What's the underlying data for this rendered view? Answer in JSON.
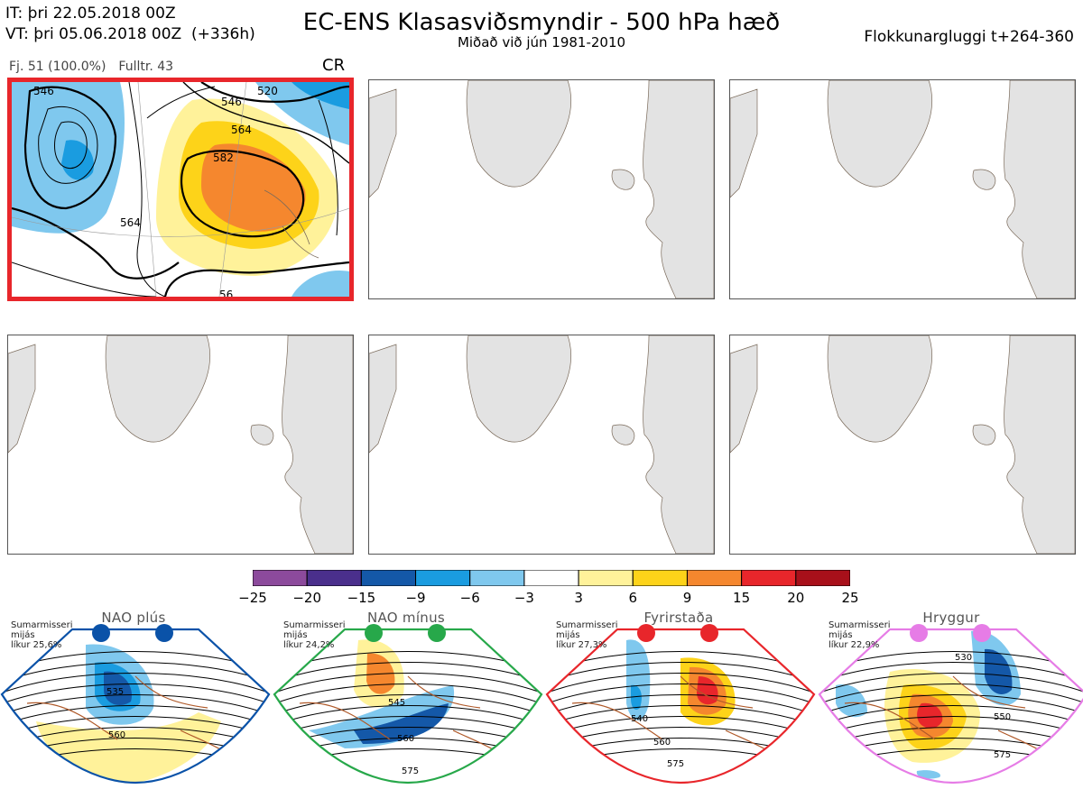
{
  "header": {
    "it_line": "IT: þri 22.05.2018 00Z",
    "vt_line": "VT: þri 05.06.2018 00Z  (+336h)",
    "title": "EC-ENS Klasasviðsmyndir - 500 hPa hæð",
    "subtitle": "Miðað við jún 1981-2010",
    "window": "Flokkunargluggi t+264-360"
  },
  "cluster": {
    "fj": "Fj. 51 (100.0%)",
    "fulltr": "Fulltr. 43",
    "regime": "CR"
  },
  "map_contour_labels": [
    "546",
    "520",
    "564",
    "582",
    "546",
    "564",
    "56"
  ],
  "colorbar": {
    "ticks": [
      "−25",
      "−20",
      "−15",
      "−9",
      "−6",
      "−3",
      "3",
      "6",
      "9",
      "15",
      "20",
      "25"
    ],
    "colors": [
      "#8c4a9c",
      "#4a2f8c",
      "#1458a8",
      "#1a9ce0",
      "#7fc8ee",
      "#ffffff",
      "#fff29a",
      "#fdd319",
      "#f5872e",
      "#e8262b",
      "#a8101a"
    ]
  },
  "regimes": [
    {
      "title": "NAO plús",
      "note": "Sumarmisseri\nmijás\nlíkur 25,6%",
      "color": "#0a52a8",
      "labels": [
        "535",
        "560"
      ]
    },
    {
      "title": "NAO mínus",
      "note": "Sumarmisseri\nmijás\nlíkur 24,2%",
      "color": "#27a84a",
      "labels": [
        "545",
        "560",
        "575"
      ]
    },
    {
      "title": "Fyrirstaða",
      "note": "Sumarmisseri\nmijás\nlíkur 27,3%",
      "color": "#e8262b",
      "labels": [
        "540",
        "560",
        "575"
      ]
    },
    {
      "title": "Hryggur",
      "note": "Sumarmisseri\nmijás\nlíkur 22,9%",
      "color": "#e67ce6",
      "labels": [
        "530",
        "550",
        "575"
      ]
    }
  ],
  "colors": {
    "land": "#e3e3e3",
    "coast": "#7a6a5a",
    "selected_border": "#e8262b",
    "regime_coast": "#b05a2a"
  }
}
